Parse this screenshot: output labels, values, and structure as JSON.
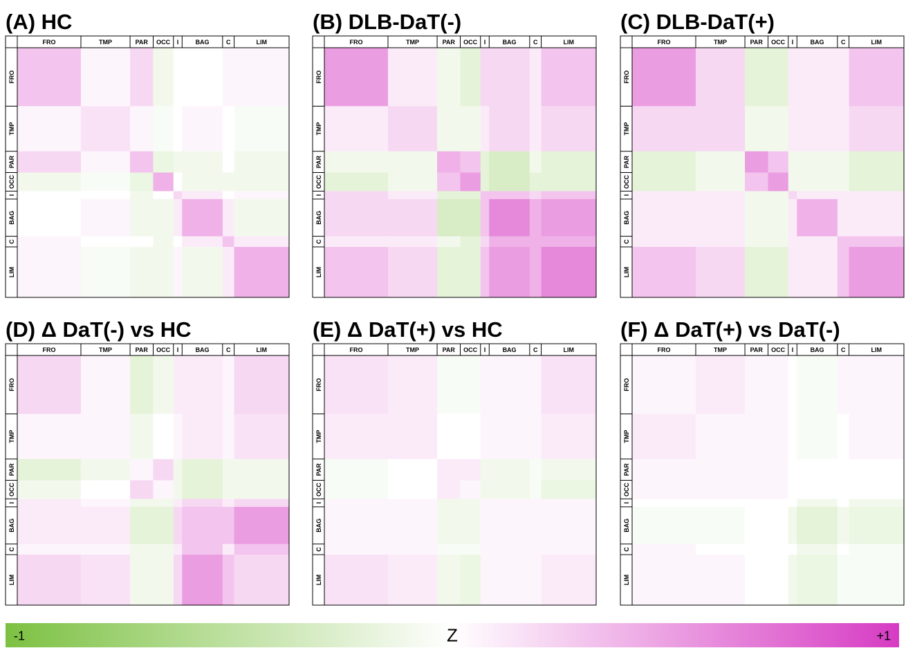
{
  "chart_data": [
    {
      "type": "heatmap",
      "title": "(A) HC",
      "categories": [
        "FRO",
        "TMP",
        "PAR",
        "OCC",
        "I",
        "BAG",
        "C",
        "LIM"
      ],
      "values": [
        [
          0.3,
          0.05,
          0.2,
          -0.1,
          0,
          0,
          0.05,
          0.05
        ],
        [
          0.05,
          0.15,
          0.05,
          -0.05,
          0,
          0.05,
          0,
          -0.05
        ],
        [
          0.2,
          0.05,
          0.3,
          -0.15,
          -0.1,
          -0.1,
          0,
          -0.1
        ],
        [
          -0.1,
          -0.05,
          -0.15,
          0.4,
          0,
          -0.1,
          -0.1,
          -0.1
        ],
        [
          0,
          0,
          -0.1,
          0,
          0.2,
          0.1,
          0,
          0.05
        ],
        [
          0,
          0.05,
          -0.1,
          -0.1,
          0.1,
          0.4,
          0.1,
          -0.1
        ],
        [
          0.05,
          0,
          0,
          -0.1,
          0,
          0.1,
          0.3,
          0.1
        ],
        [
          0.05,
          -0.05,
          -0.1,
          -0.1,
          0.05,
          -0.1,
          0.1,
          0.4
        ]
      ]
    },
    {
      "type": "heatmap",
      "title": "(B) DLB-DaT(-)",
      "categories": [
        "FRO",
        "TMP",
        "PAR",
        "OCC",
        "I",
        "BAG",
        "C",
        "LIM"
      ],
      "values": [
        [
          0.5,
          0.1,
          -0.1,
          -0.2,
          0.2,
          0.2,
          0.1,
          0.3
        ],
        [
          0.1,
          0.2,
          -0.1,
          -0.1,
          0.1,
          0.2,
          0.1,
          0.2
        ],
        [
          -0.1,
          -0.1,
          0.4,
          0.3,
          -0.2,
          -0.3,
          -0.1,
          -0.2
        ],
        [
          -0.2,
          -0.1,
          0.3,
          0.5,
          -0.2,
          -0.3,
          -0.2,
          -0.2
        ],
        [
          0.2,
          0.1,
          -0.2,
          -0.2,
          0.3,
          0.3,
          0.2,
          0.3
        ],
        [
          0.2,
          0.2,
          -0.3,
          -0.3,
          0.3,
          0.6,
          0.4,
          0.5
        ],
        [
          0.1,
          0.1,
          -0.1,
          -0.2,
          0.2,
          0.4,
          0.4,
          0.4
        ],
        [
          0.3,
          0.2,
          -0.2,
          -0.2,
          0.3,
          0.5,
          0.4,
          0.6
        ]
      ]
    },
    {
      "type": "heatmap",
      "title": "(C) DLB-DaT(+)",
      "categories": [
        "FRO",
        "TMP",
        "PAR",
        "OCC",
        "I",
        "BAG",
        "C",
        "LIM"
      ],
      "values": [
        [
          0.5,
          0.2,
          -0.2,
          -0.2,
          0.1,
          0.1,
          0.1,
          0.3
        ],
        [
          0.2,
          0.2,
          -0.1,
          -0.1,
          0.1,
          0.1,
          0.1,
          0.2
        ],
        [
          -0.2,
          -0.1,
          0.5,
          0.3,
          -0.1,
          -0.1,
          -0.1,
          -0.2
        ],
        [
          -0.2,
          -0.1,
          0.3,
          0.5,
          -0.1,
          -0.1,
          -0.1,
          -0.2
        ],
        [
          0.1,
          0.1,
          -0.1,
          -0.1,
          0.2,
          0.1,
          0.1,
          0.1
        ],
        [
          0.1,
          0.1,
          -0.1,
          -0.1,
          0.1,
          0.4,
          0.1,
          0.1
        ],
        [
          0.1,
          0.1,
          -0.1,
          -0.1,
          0.1,
          0.1,
          0.3,
          0.3
        ],
        [
          0.3,
          0.2,
          -0.2,
          -0.2,
          0.1,
          0.1,
          0.3,
          0.5
        ]
      ]
    },
    {
      "type": "heatmap",
      "title": "(D) Δ DaT(-) vs HC",
      "categories": [
        "FRO",
        "TMP",
        "PAR",
        "OCC",
        "I",
        "BAG",
        "C",
        "LIM"
      ],
      "values": [
        [
          0.2,
          0.05,
          -0.2,
          -0.1,
          0.1,
          0.1,
          0.05,
          0.2
        ],
        [
          0.05,
          0.05,
          -0.1,
          0,
          0.05,
          0.1,
          0.05,
          0.15
        ],
        [
          -0.2,
          -0.1,
          0.05,
          0.2,
          -0.1,
          -0.2,
          -0.1,
          -0.1
        ],
        [
          -0.1,
          0,
          0.2,
          0.05,
          -0.1,
          -0.2,
          -0.1,
          -0.1
        ],
        [
          0.1,
          0.05,
          -0.1,
          -0.1,
          0.1,
          0.2,
          0.1,
          0.2
        ],
        [
          0.1,
          0.1,
          -0.2,
          -0.2,
          0.2,
          0.3,
          0.3,
          0.5
        ],
        [
          0.05,
          0.05,
          -0.1,
          -0.1,
          0.1,
          0.3,
          0.1,
          0.3
        ],
        [
          0.2,
          0.15,
          -0.1,
          -0.1,
          0.2,
          0.5,
          0.3,
          0.2
        ]
      ]
    },
    {
      "type": "heatmap",
      "title": "(E) Δ DaT(+) vs HC",
      "categories": [
        "FRO",
        "TMP",
        "PAR",
        "OCC",
        "I",
        "BAG",
        "C",
        "LIM"
      ],
      "values": [
        [
          0.15,
          0.1,
          -0.05,
          -0.05,
          0.05,
          0.05,
          0.05,
          0.15
        ],
        [
          0.1,
          0.1,
          0,
          0,
          0.05,
          0.05,
          0.05,
          0.1
        ],
        [
          -0.05,
          0,
          0.1,
          0.1,
          -0.1,
          -0.1,
          -0.05,
          -0.1
        ],
        [
          -0.05,
          0,
          0.1,
          0.05,
          -0.1,
          -0.1,
          -0.05,
          -0.15
        ],
        [
          0.05,
          0.05,
          -0.1,
          -0.1,
          0.05,
          0.05,
          0.05,
          0.05
        ],
        [
          0.05,
          0.05,
          -0.1,
          -0.1,
          0.05,
          0.05,
          0.05,
          0.05
        ],
        [
          0.05,
          0.05,
          -0.05,
          -0.05,
          0.05,
          0.05,
          0.05,
          0.05
        ],
        [
          0.15,
          0.1,
          -0.1,
          -0.15,
          0.05,
          0.05,
          0.05,
          0.1
        ]
      ]
    },
    {
      "type": "heatmap",
      "title": "(F) Δ DaT(+) vs DaT(-)",
      "categories": [
        "FRO",
        "TMP",
        "PAR",
        "OCC",
        "I",
        "BAG",
        "C",
        "LIM"
      ],
      "values": [
        [
          0.05,
          0.1,
          0.05,
          0.05,
          0,
          -0.05,
          0.05,
          0.05
        ],
        [
          0.1,
          0.05,
          0.05,
          0.05,
          0,
          -0.05,
          0,
          0.05
        ],
        [
          0.05,
          0.05,
          0.05,
          0.05,
          0,
          0,
          0,
          0
        ],
        [
          0.05,
          0.05,
          0.05,
          0.05,
          0,
          0,
          0,
          0
        ],
        [
          0,
          0,
          0,
          0,
          0,
          -0.1,
          0,
          -0.1
        ],
        [
          -0.05,
          -0.05,
          0,
          0,
          -0.1,
          -0.2,
          -0.1,
          -0.15
        ],
        [
          0.05,
          0,
          0,
          0,
          0,
          -0.1,
          0,
          -0.05
        ],
        [
          0.05,
          0.05,
          0,
          0,
          -0.1,
          -0.15,
          -0.05,
          -0.05
        ]
      ]
    }
  ],
  "colorbar": {
    "label": "Z",
    "lim": [
      -1,
      1
    ],
    "ticks": [
      -1,
      {
        "value": 1,
        "label": "+1"
      }
    ],
    "colors": [
      "#7cc142",
      "#ffffff",
      "#d63bc3"
    ]
  }
}
